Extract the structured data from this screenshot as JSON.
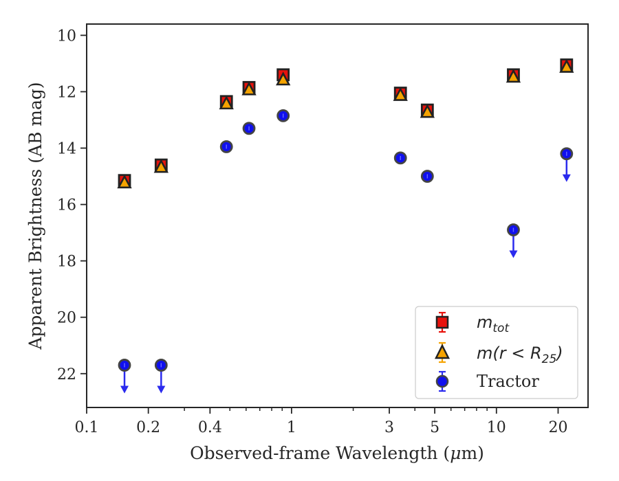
{
  "chart_data": {
    "type": "scatter",
    "xlabel_prefix": "Observed-frame Wavelength (",
    "xlabel_mu": "μ",
    "xlabel_suffix": "m)",
    "ylabel": "Apparent Brightness (AB mag)",
    "x_scale": "log",
    "xlim": [
      0.1,
      28
    ],
    "ylim": [
      23.2,
      9.6
    ],
    "y_inverted": true,
    "x_ticks": [
      0.1,
      0.2,
      0.4,
      1,
      3,
      5,
      10,
      20
    ],
    "x_tick_labels": [
      "0.1",
      "0.2",
      "0.4",
      "1",
      "3",
      "5",
      "10",
      "20"
    ],
    "y_ticks": [
      10,
      12,
      14,
      16,
      18,
      20,
      22
    ],
    "y_tick_labels": [
      "10",
      "12",
      "14",
      "16",
      "18",
      "20",
      "22"
    ],
    "grid": false,
    "legend_position": "lower-right",
    "legend": {
      "mtot_math": "m",
      "mtot_sub": "tot",
      "mr_math": "m(r < R",
      "mr_sub": "25",
      "mr_close": ")",
      "tractor": "Tractor"
    },
    "series": [
      {
        "key": "mtot",
        "marker": "square",
        "color": "#e8120c",
        "edge_color": "#222222",
        "errorbar_color": "#e8120c",
        "x": [
          0.153,
          0.231,
          0.481,
          0.62,
          0.91,
          3.4,
          4.6,
          12.1,
          22.0
        ],
        "y": [
          15.15,
          14.6,
          12.35,
          11.85,
          11.4,
          12.05,
          12.65,
          11.4,
          11.05
        ]
      },
      {
        "key": "mr25",
        "marker": "triangle",
        "color": "#f5a300",
        "edge_color": "#222222",
        "errorbar_color": "#f5a300",
        "x": [
          0.153,
          0.231,
          0.481,
          0.62,
          0.91,
          3.4,
          4.6,
          12.1,
          22.0
        ],
        "y": [
          15.2,
          14.65,
          12.4,
          11.9,
          11.55,
          12.1,
          12.7,
          11.45,
          11.1
        ]
      },
      {
        "key": "tractor",
        "marker": "circle",
        "color": "#1010ee",
        "edge_color": "#444444",
        "errorbar_color": "#2a2aee",
        "x": [
          0.153,
          0.231,
          0.481,
          0.62,
          0.91,
          3.4,
          4.6,
          12.1,
          22.0
        ],
        "y": [
          21.7,
          21.7,
          13.95,
          13.3,
          12.85,
          14.35,
          15.0,
          16.9,
          14.2
        ],
        "upper_limit": [
          true,
          true,
          false,
          false,
          false,
          false,
          false,
          true,
          true
        ]
      }
    ]
  }
}
